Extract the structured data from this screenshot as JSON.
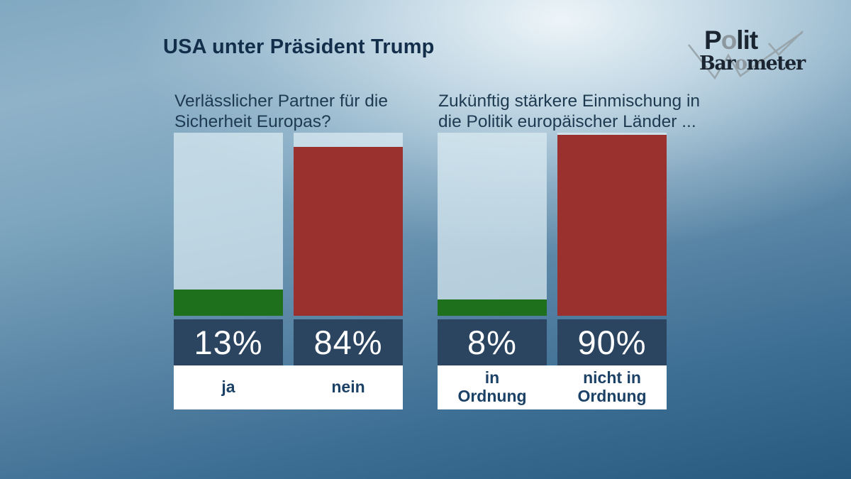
{
  "title": "USA unter Präsident Trump",
  "logo": {
    "polit": [
      "P",
      "o",
      "lit"
    ],
    "barometer": [
      "Bar",
      "o",
      "meter"
    ]
  },
  "colors": {
    "positive_green": "#1f701c",
    "negative_red": "#9b312f",
    "value_band_navy": "#2b4560",
    "label_navy": "#1c4166",
    "title_navy": "#132e4a"
  },
  "chart_data": [
    {
      "type": "bar",
      "title": "Verlässlicher Partner für die\nSicherheit Europas?",
      "categories": [
        "ja",
        "nein"
      ],
      "category_display": [
        "ja",
        "nein"
      ],
      "values": [
        13,
        84
      ],
      "unit": "%",
      "colors": [
        "#1f701c",
        "#9b312f"
      ],
      "ylim": [
        0,
        100
      ],
      "grid": false,
      "legend": "none"
    },
    {
      "type": "bar",
      "title": "Zukünftig stärkere Einmischung in\ndie Politik europäischer Länder ...",
      "categories": [
        "in Ordnung",
        "nicht in Ordnung"
      ],
      "category_display": [
        "in\nOrdnung",
        "nicht in\nOrdnung"
      ],
      "values": [
        8,
        90
      ],
      "unit": "%",
      "colors": [
        "#1f701c",
        "#9b312f"
      ],
      "ylim": [
        0,
        100
      ],
      "grid": false,
      "legend": "none"
    }
  ]
}
